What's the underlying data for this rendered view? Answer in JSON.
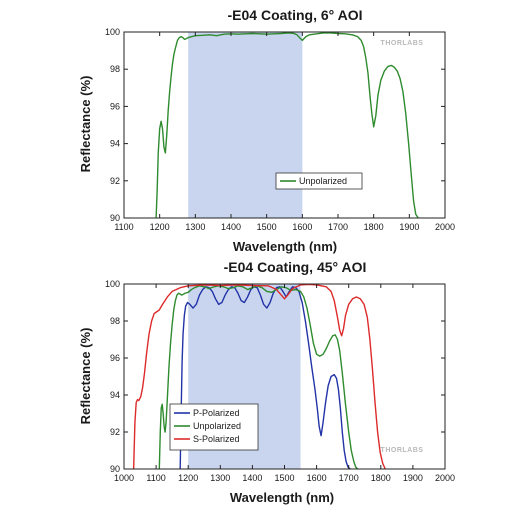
{
  "chart_data": [
    {
      "type": "line",
      "title": "-E04 Coating, 6° AOI",
      "xlabel": "Wavelength (nm)",
      "ylabel": "Reflectance (%)",
      "xlim": [
        1100,
        2000
      ],
      "ylim": [
        90,
        100
      ],
      "xticks": [
        1100,
        1200,
        1300,
        1400,
        1500,
        1600,
        1700,
        1800,
        1900,
        2000
      ],
      "yticks": [
        90,
        92,
        94,
        96,
        98,
        100
      ],
      "shaded_region": [
        1280,
        1600
      ],
      "legend_position": "lower-middle",
      "watermark": "THORLABS",
      "series": [
        {
          "name": "Unpolarized",
          "color": "#2e8b2e",
          "x": [
            1190,
            1193,
            1196,
            1200,
            1204,
            1208,
            1212,
            1216,
            1220,
            1224,
            1228,
            1232,
            1236,
            1240,
            1245,
            1250,
            1255,
            1260,
            1265,
            1270,
            1280,
            1300,
            1320,
            1340,
            1360,
            1380,
            1400,
            1420,
            1440,
            1460,
            1480,
            1500,
            1520,
            1540,
            1560,
            1575,
            1585,
            1592,
            1600,
            1610,
            1620,
            1640,
            1660,
            1680,
            1700,
            1720,
            1740,
            1755,
            1765,
            1772,
            1778,
            1784,
            1790,
            1795,
            1800,
            1806,
            1812,
            1820,
            1830,
            1840,
            1850,
            1858,
            1866,
            1874,
            1882,
            1890,
            1898,
            1906,
            1912,
            1918,
            1925
          ],
          "y": [
            90,
            91.5,
            93.5,
            94.8,
            95.2,
            94.8,
            93.8,
            93.5,
            94.5,
            95.8,
            96.8,
            97.6,
            98.3,
            98.8,
            99.2,
            99.55,
            99.7,
            99.75,
            99.7,
            99.6,
            99.7,
            99.8,
            99.82,
            99.85,
            99.8,
            99.88,
            99.9,
            99.88,
            99.9,
            99.92,
            99.9,
            99.88,
            99.9,
            99.92,
            99.95,
            99.93,
            99.85,
            99.7,
            99.55,
            99.75,
            99.85,
            99.9,
            99.95,
            99.95,
            99.92,
            99.9,
            99.85,
            99.75,
            99.55,
            99.2,
            98.6,
            97.8,
            96.5,
            95.6,
            94.9,
            95.5,
            96.6,
            97.4,
            97.9,
            98.15,
            98.2,
            98.1,
            97.9,
            97.5,
            96.8,
            95.6,
            94.0,
            92.2,
            90.9,
            90.2,
            90
          ]
        }
      ]
    },
    {
      "type": "line",
      "title": "-E04 Coating, 45° AOI",
      "xlabel": "Wavelength (nm)",
      "ylabel": "Reflectance (%)",
      "xlim": [
        1000,
        2000
      ],
      "ylim": [
        90,
        100
      ],
      "xticks": [
        1000,
        1100,
        1200,
        1300,
        1400,
        1500,
        1600,
        1700,
        1800,
        1900,
        2000
      ],
      "yticks": [
        90,
        92,
        94,
        96,
        98,
        100
      ],
      "shaded_region": [
        1200,
        1550
      ],
      "legend_position": "lower-left",
      "watermark": "THORLABS",
      "series": [
        {
          "name": "P-Polarized",
          "color": "#2233a8",
          "x": [
            1175,
            1178,
            1181,
            1184,
            1188,
            1192,
            1198,
            1205,
            1215,
            1225,
            1235,
            1245,
            1255,
            1265,
            1275,
            1285,
            1295,
            1305,
            1315,
            1325,
            1335,
            1345,
            1355,
            1365,
            1375,
            1385,
            1395,
            1405,
            1415,
            1425,
            1435,
            1445,
            1455,
            1465,
            1475,
            1485,
            1495,
            1505,
            1515,
            1525,
            1535,
            1545,
            1555,
            1565,
            1575,
            1585,
            1595,
            1602,
            1608,
            1614,
            1620,
            1628,
            1636,
            1645,
            1655,
            1662,
            1668,
            1674,
            1680,
            1686,
            1692,
            1698,
            1705
          ],
          "y": [
            90,
            93,
            95.8,
            97.3,
            98.3,
            98.8,
            99.0,
            98.9,
            98.7,
            98.9,
            99.4,
            99.7,
            99.85,
            99.8,
            99.6,
            99.2,
            98.9,
            99.0,
            99.4,
            99.7,
            99.85,
            99.8,
            99.5,
            99.1,
            99.0,
            99.3,
            99.7,
            99.85,
            99.8,
            99.4,
            98.9,
            98.7,
            99.0,
            99.5,
            99.8,
            99.85,
            99.6,
            99.3,
            99.6,
            99.85,
            99.8,
            99.6,
            99.0,
            98.0,
            96.8,
            95.5,
            94.3,
            93.3,
            92.3,
            91.8,
            92.5,
            93.6,
            94.5,
            95.0,
            95.1,
            94.9,
            94.3,
            93.3,
            92.0,
            91.0,
            90.4,
            90.1,
            90
          ]
        },
        {
          "name": "Unpolarized",
          "color": "#2e8b2e",
          "x": [
            1110,
            1113,
            1116,
            1119,
            1122,
            1125,
            1128,
            1131,
            1135,
            1140,
            1145,
            1150,
            1155,
            1160,
            1165,
            1170,
            1175,
            1180,
            1185,
            1190,
            1200,
            1210,
            1220,
            1235,
            1250,
            1265,
            1280,
            1295,
            1310,
            1325,
            1340,
            1355,
            1370,
            1385,
            1400,
            1415,
            1430,
            1445,
            1460,
            1475,
            1490,
            1505,
            1520,
            1535,
            1550,
            1560,
            1570,
            1580,
            1590,
            1600,
            1610,
            1620,
            1630,
            1640,
            1650,
            1658,
            1665,
            1672,
            1680,
            1690,
            1700,
            1708,
            1716,
            1722,
            1728
          ],
          "y": [
            90,
            92.0,
            93.3,
            93.5,
            93.0,
            92.3,
            92.0,
            92.5,
            93.8,
            95.5,
            96.8,
            97.8,
            98.6,
            99.1,
            99.4,
            99.5,
            99.45,
            99.4,
            99.45,
            99.5,
            99.55,
            99.7,
            99.8,
            99.9,
            99.85,
            99.75,
            99.85,
            99.9,
            99.85,
            99.75,
            99.8,
            99.9,
            99.85,
            99.7,
            99.8,
            99.9,
            99.8,
            99.6,
            99.55,
            99.7,
            99.85,
            99.8,
            99.65,
            99.7,
            99.6,
            99.3,
            98.7,
            97.8,
            96.8,
            96.2,
            96.1,
            96.2,
            96.5,
            96.9,
            97.2,
            97.25,
            97.0,
            96.4,
            95.2,
            93.5,
            92.0,
            91.0,
            90.4,
            90.1,
            90
          ]
        },
        {
          "name": "S-Polarized",
          "color": "#dd2a2a",
          "x": [
            1030,
            1034,
            1038,
            1042,
            1046,
            1052,
            1058,
            1064,
            1070,
            1078,
            1086,
            1094,
            1102,
            1110,
            1120,
            1135,
            1150,
            1175,
            1200,
            1250,
            1300,
            1350,
            1400,
            1450,
            1475,
            1490,
            1500,
            1510,
            1525,
            1550,
            1575,
            1600,
            1615,
            1630,
            1645,
            1655,
            1665,
            1672,
            1678,
            1684,
            1690,
            1700,
            1712,
            1724,
            1736,
            1748,
            1758,
            1766,
            1774,
            1782,
            1790,
            1798,
            1806,
            1814
          ],
          "y": [
            90,
            92.5,
            93.6,
            93.75,
            93.7,
            93.9,
            94.4,
            95.2,
            96.2,
            97.3,
            98.0,
            98.4,
            98.5,
            98.6,
            98.9,
            99.3,
            99.6,
            99.8,
            99.9,
            99.95,
            99.92,
            99.95,
            99.92,
            99.9,
            99.7,
            99.4,
            99.2,
            99.4,
            99.75,
            99.95,
            99.98,
            99.95,
            99.9,
            99.85,
            99.6,
            99.1,
            98.2,
            97.5,
            97.2,
            97.6,
            98.3,
            98.9,
            99.2,
            99.3,
            99.2,
            98.9,
            98.2,
            97.0,
            95.4,
            93.6,
            92.0,
            90.9,
            90.3,
            90
          ]
        }
      ]
    }
  ]
}
